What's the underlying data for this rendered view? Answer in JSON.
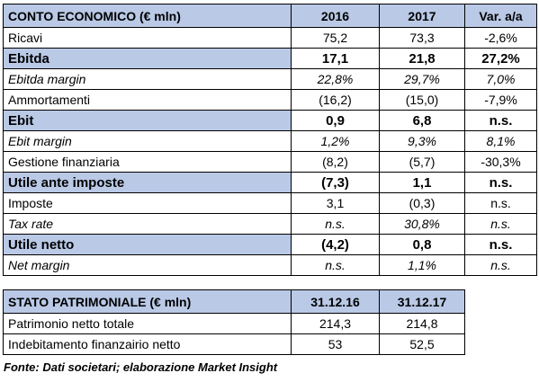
{
  "income": {
    "header": [
      "CONTO ECONOMICO (€ mln)",
      "2016",
      "2017",
      "Var. a/a"
    ],
    "rows": [
      {
        "label": "Ricavi",
        "v1": "75,2",
        "v2": "73,3",
        "v3": "-2,6%",
        "style": "normal"
      },
      {
        "label": "Ebitda",
        "v1": "17,1",
        "v2": "21,8",
        "v3": "27,2%",
        "style": "bold"
      },
      {
        "label": "Ebitda margin",
        "v1": "22,8%",
        "v2": "29,7%",
        "v3": "7,0%",
        "style": "italic"
      },
      {
        "label": "Ammortamenti",
        "v1": "(16,2)",
        "v2": "(15,0)",
        "v3": "-7,9%",
        "style": "normal"
      },
      {
        "label": "Ebit",
        "v1": "0,9",
        "v2": "6,8",
        "v3": "n.s.",
        "style": "bold"
      },
      {
        "label": "Ebit margin",
        "v1": "1,2%",
        "v2": "9,3%",
        "v3": "8,1%",
        "style": "italic"
      },
      {
        "label": "Gestione finanziaria",
        "v1": "(8,2)",
        "v2": "(5,7)",
        "v3": "-30,3%",
        "style": "normal"
      },
      {
        "label": "Utile ante imposte",
        "v1": "(7,3)",
        "v2": "1,1",
        "v3": "n.s.",
        "style": "bold"
      },
      {
        "label": "Imposte",
        "v1": "3,1",
        "v2": "(0,3)",
        "v3": "n.s.",
        "style": "normal"
      },
      {
        "label": "Tax rate",
        "v1": "n.s.",
        "v2": "30,8%",
        "v3": "n.s.",
        "style": "italic"
      },
      {
        "label": "Utile netto",
        "v1": "(4,2)",
        "v2": "0,8",
        "v3": "n.s.",
        "style": "bold"
      },
      {
        "label": "Net margin",
        "v1": "n.s.",
        "v2": "1,1%",
        "v3": "n.s.",
        "style": "italic"
      }
    ]
  },
  "balance": {
    "header": [
      "STATO PATRIMONIALE (€ mln)",
      "31.12.16",
      "31.12.17"
    ],
    "rows": [
      {
        "label": "Patrimonio netto totale",
        "v1": "214,3",
        "v2": "214,8"
      },
      {
        "label": "Indebitamento finanzairio netto",
        "v1": "53",
        "v2": "52,5"
      }
    ]
  },
  "footnote": "Fonte: Dati societari; elaborazione Market Insight",
  "colors": {
    "header_bg": "#b9c9e6",
    "border": "#000000"
  }
}
